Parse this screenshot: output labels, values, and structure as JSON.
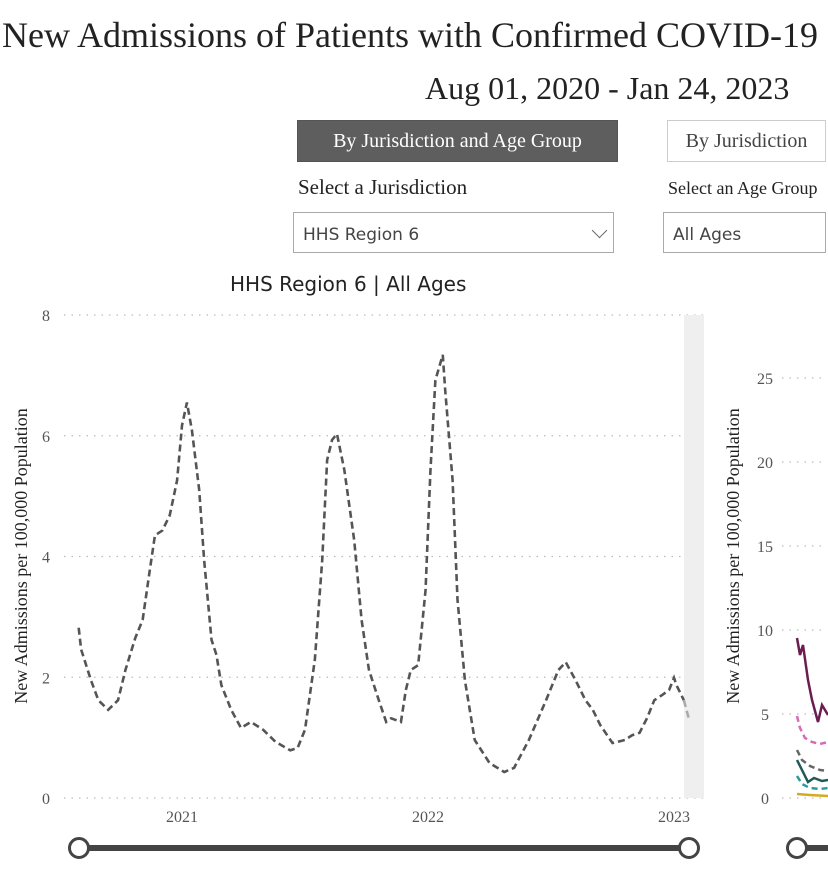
{
  "header": {
    "title": "New Admissions of Patients with Confirmed COVID-19",
    "date_range": "Aug 01, 2020 - Jan 24, 2023"
  },
  "view_buttons": [
    {
      "label": "By Jurisdiction and Age Group",
      "active": true
    },
    {
      "label": "By Jurisdiction",
      "active": false
    }
  ],
  "filters": {
    "jurisdiction_label": "Select a Jurisdiction",
    "jurisdiction_value": "HHS Region 6",
    "age_label": "Select an Age Group",
    "age_value": "All Ages"
  },
  "colors": {
    "line": "#555555",
    "active_button": "#5e5e5e",
    "series_purple": "#6b1d4f",
    "series_pink": "#d86bb3",
    "series_darkteal": "#1f5a5a",
    "series_teal": "#2a9a9a",
    "series_gray": "#666666",
    "series_yellow": "#d4aa20"
  },
  "chart_data": [
    {
      "type": "line",
      "title": "HHS Region 6 | All Ages",
      "xlabel": "",
      "ylabel": "New Admissions per 100,000 Population",
      "ylim": [
        0,
        8
      ],
      "yticks": [
        "0",
        "2",
        "4",
        "6",
        "8"
      ],
      "yticks_values": [
        0,
        2,
        4,
        6,
        8
      ],
      "xticks": [
        "2021",
        "2022",
        "2023"
      ],
      "xticks_values": [
        2021,
        2022,
        2023
      ],
      "xlim": [
        2020.58,
        2023.07
      ],
      "grid": true,
      "series": [
        {
          "name": "All Ages",
          "style": "dashed",
          "x": [
            2020.58,
            2020.59,
            2020.63,
            2020.66,
            2020.7,
            2020.74,
            2020.77,
            2020.81,
            2020.84,
            2020.87,
            2020.89,
            2020.92,
            2020.95,
            2020.98,
            2021.0,
            2021.02,
            2021.04,
            2021.07,
            2021.09,
            2021.12,
            2021.14,
            2021.16,
            2021.2,
            2021.24,
            2021.28,
            2021.33,
            2021.38,
            2021.44,
            2021.47,
            2021.5,
            2021.54,
            2021.57,
            2021.59,
            2021.61,
            2021.63,
            2021.66,
            2021.7,
            2021.73,
            2021.76,
            2021.8,
            2021.83,
            2021.85,
            2021.89,
            2021.91,
            2021.93,
            2021.96,
            2021.99,
            2022.01,
            2022.03,
            2022.06,
            2022.07,
            2022.1,
            2022.12,
            2022.15,
            2022.19,
            2022.25,
            2022.31,
            2022.35,
            2022.41,
            2022.48,
            2022.53,
            2022.56,
            2022.6,
            2022.64,
            2022.67,
            2022.7,
            2022.75,
            2022.8,
            2022.83,
            2022.86,
            2022.89,
            2022.92,
            2022.95,
            2022.98,
            2023.0,
            2023.01,
            2023.04,
            2023.06
          ],
          "y": [
            2.82,
            2.46,
            1.95,
            1.62,
            1.46,
            1.62,
            2.12,
            2.65,
            2.95,
            3.8,
            4.35,
            4.43,
            4.68,
            5.26,
            6.17,
            6.55,
            6.1,
            5.1,
            3.94,
            2.62,
            2.37,
            1.87,
            1.46,
            1.16,
            1.26,
            1.13,
            0.93,
            0.79,
            0.83,
            1.13,
            2.29,
            3.94,
            5.6,
            5.93,
            6.03,
            5.43,
            4.27,
            2.95,
            2.12,
            1.62,
            1.26,
            1.32,
            1.26,
            1.79,
            2.12,
            2.2,
            3.44,
            5.43,
            6.92,
            7.34,
            6.75,
            5.26,
            3.28,
            1.95,
            0.96,
            0.58,
            0.43,
            0.5,
            0.96,
            1.62,
            2.12,
            2.25,
            1.95,
            1.62,
            1.46,
            1.21,
            0.91,
            0.96,
            1.04,
            1.08,
            1.32,
            1.62,
            1.7,
            1.79,
            1.99,
            1.87,
            1.62,
            1.32
          ]
        }
      ]
    },
    {
      "type": "line",
      "title": "",
      "ylabel": "New Admissions per 100,000 Population",
      "ylim": [
        0,
        25
      ],
      "yticks": [
        "0",
        "5",
        "10",
        "15",
        "20",
        "25"
      ],
      "yticks_values": [
        0,
        5,
        10,
        15,
        20,
        25
      ],
      "grid": true,
      "note": "partially visible, cut off at right edge"
    }
  ]
}
